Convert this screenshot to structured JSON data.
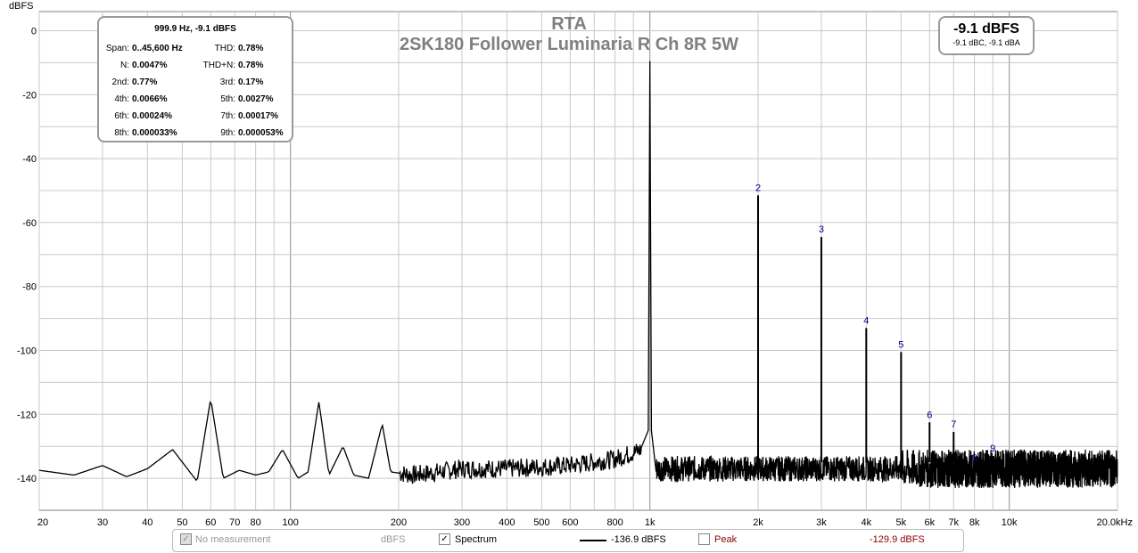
{
  "chart_data": {
    "type": "line",
    "title": "RTA",
    "subtitle": "2SK180 Follower Luminaria R Ch 8R 5W",
    "ylabel": "dBFS",
    "x_scale": "log",
    "xlim": [
      20,
      20000
    ],
    "ylim": [
      -150,
      6
    ],
    "x_ticks": [
      {
        "v": 20,
        "label": "20"
      },
      {
        "v": 30,
        "label": "30"
      },
      {
        "v": 40,
        "label": "40"
      },
      {
        "v": 50,
        "label": "50"
      },
      {
        "v": 60,
        "label": "60"
      },
      {
        "v": 70,
        "label": "70"
      },
      {
        "v": 80,
        "label": "80"
      },
      {
        "v": 100,
        "label": "100"
      },
      {
        "v": 200,
        "label": "200"
      },
      {
        "v": 300,
        "label": "300"
      },
      {
        "v": 400,
        "label": "400"
      },
      {
        "v": 500,
        "label": "500"
      },
      {
        "v": 600,
        "label": "600"
      },
      {
        "v": 800,
        "label": "800"
      },
      {
        "v": 1000,
        "label": "1k"
      },
      {
        "v": 2000,
        "label": "2k"
      },
      {
        "v": 3000,
        "label": "3k"
      },
      {
        "v": 4000,
        "label": "4k"
      },
      {
        "v": 5000,
        "label": "5k"
      },
      {
        "v": 6000,
        "label": "6k"
      },
      {
        "v": 7000,
        "label": "7k"
      },
      {
        "v": 8000,
        "label": "8k"
      },
      {
        "v": 10000,
        "label": "10k"
      },
      {
        "v": 20000,
        "label": "20.0kHz"
      }
    ],
    "y_ticks": [
      {
        "v": 0,
        "label": "0"
      },
      {
        "v": -20,
        "label": "-20"
      },
      {
        "v": -40,
        "label": "-40"
      },
      {
        "v": -60,
        "label": "-60"
      },
      {
        "v": -80,
        "label": "-80"
      },
      {
        "v": -100,
        "label": "-100"
      },
      {
        "v": -120,
        "label": "-120"
      },
      {
        "v": -140,
        "label": "-140"
      }
    ],
    "grid": true,
    "series": [
      {
        "color": "#000000",
        "noise_floor": -137,
        "noise_points": [
          [
            20,
            -137.5
          ],
          [
            25,
            -139
          ],
          [
            30,
            -136
          ],
          [
            35,
            -139.5
          ],
          [
            40,
            -137
          ],
          [
            47,
            -131
          ],
          [
            55,
            -141
          ],
          [
            60,
            -115
          ],
          [
            65,
            -140
          ],
          [
            72,
            -137.5
          ],
          [
            80,
            -139
          ],
          [
            87,
            -138
          ],
          [
            95,
            -131
          ],
          [
            105,
            -140
          ],
          [
            112,
            -138
          ],
          [
            120,
            -116
          ],
          [
            128,
            -139
          ],
          [
            140,
            -130
          ],
          [
            150,
            -139
          ],
          [
            165,
            -140
          ],
          [
            180,
            -123
          ],
          [
            190,
            -138
          ],
          [
            220,
            -139
          ],
          [
            260,
            -138
          ],
          [
            300,
            -137
          ],
          [
            400,
            -137
          ],
          [
            600,
            -136
          ],
          [
            800,
            -134
          ],
          [
            950,
            -131
          ],
          [
            1000,
            -9.5
          ],
          [
            1050,
            -132
          ],
          [
            1200,
            -137
          ],
          [
            2000,
            -136
          ],
          [
            5000,
            -136
          ],
          [
            20000,
            -136
          ]
        ],
        "harmonics": [
          {
            "label": "2",
            "f": 2000,
            "db": -51.5
          },
          {
            "label": "3",
            "f": 3000,
            "db": -64.5
          },
          {
            "label": "4",
            "f": 4000,
            "db": -93
          },
          {
            "label": "5",
            "f": 5000,
            "db": -100.5
          },
          {
            "label": "6",
            "f": 6000,
            "db": -122.5
          },
          {
            "label": "7",
            "f": 7000,
            "db": -125.5
          },
          {
            "label": "8",
            "f": 8000,
            "db": -136
          },
          {
            "label": "9",
            "f": 9000,
            "db": -133
          }
        ]
      }
    ]
  },
  "info_box": {
    "header": "999.9 Hz, -9.1 dBFS",
    "rows": [
      {
        "l1": "Span:",
        "v1": "0..45,600 Hz",
        "l2": "THD:",
        "v2": "0.78%"
      },
      {
        "l1": "N:",
        "v1": "0.0047%",
        "l2": "THD+N:",
        "v2": "0.78%"
      },
      {
        "l1": "2nd:",
        "v1": "0.77%",
        "l2": "3rd:",
        "v2": "0.17%"
      },
      {
        "l1": "4th:",
        "v1": "0.0066%",
        "l2": "5th:",
        "v2": "0.0027%"
      },
      {
        "l1": "6th:",
        "v1": "0.00024%",
        "l2": "7th:",
        "v2": "0.00017%"
      },
      {
        "l1": "8th:",
        "v1": "0.000033%",
        "l2": "9th:",
        "v2": "0.000053%"
      }
    ]
  },
  "level_box": {
    "main": "-9.1 dBFS",
    "sub": "-9.1 dBC, -9.1 dBA"
  },
  "legend": {
    "no_measurement": "No measurement",
    "unit": "dBFS",
    "spectrum": "Spectrum",
    "spectrum_value": "-136.9 dBFS",
    "peak": "Peak",
    "peak_value": "-129.9 dBFS",
    "peak_color": "#8b0000"
  },
  "colors": {
    "grid": "#c8c8c8",
    "harmonic_label": "#00008b",
    "title": "#808080"
  }
}
